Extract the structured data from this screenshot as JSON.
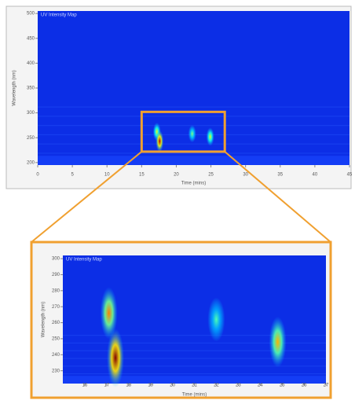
{
  "chart_data": [
    {
      "type": "heatmap",
      "title": "UV Intensity Map",
      "x_label": "Time (mins)",
      "y_label": "Wavelength (nm)",
      "xlim": [
        0,
        45
      ],
      "xticks": [
        0,
        5,
        10,
        15,
        20,
        25,
        30,
        35,
        40,
        45
      ],
      "ylim": [
        195,
        505
      ],
      "yticks": [
        200,
        250,
        300,
        350,
        400,
        450,
        500
      ],
      "peaks": {
        "x": [
          17.2,
          17.6,
          22.3,
          24.9
        ],
        "y": [
          262,
          243,
          258,
          252
        ],
        "intensity": [
          0.6,
          0.95,
          0.5,
          0.6
        ]
      }
    },
    {
      "type": "heatmap",
      "title": "UV Intensity Map",
      "x_label": "Time (mins)",
      "y_label": "Wavelength (nm)",
      "xlim": [
        15,
        27
      ],
      "xticks": [
        16,
        17,
        18,
        19,
        20,
        21,
        22,
        23,
        24,
        25,
        26,
        27
      ],
      "ylim": [
        222,
        302
      ],
      "yticks": [
        230,
        240,
        250,
        260,
        270,
        280,
        290,
        300
      ],
      "peaks": {
        "x": [
          17.1,
          17.4,
          22.0,
          24.8
        ],
        "y": [
          266,
          238,
          262,
          248
        ],
        "intensity": [
          0.75,
          1.0,
          0.45,
          0.7
        ]
      }
    }
  ]
}
